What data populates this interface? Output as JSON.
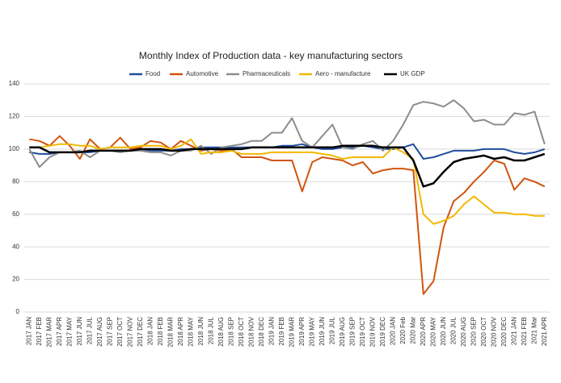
{
  "chart_data": {
    "type": "line",
    "title": "Monthly Index of Production data  - key manufacturing sectors",
    "categories": [
      "2017 JAN",
      "2017 FEB",
      "2017 MAR",
      "2017 APR",
      "2017 MAY",
      "2017 JUN",
      "2017 JUL",
      "2017 AUG",
      "2017 SEP",
      "2017 OCT",
      "2017 NOV",
      "2017 DEC",
      "2018 JAN",
      "2018 FEB",
      "2018 MAR",
      "2018 APR",
      "2018 MAY",
      "2018 JUN",
      "2018 JUL",
      "2018 AUG",
      "2018 SEP",
      "2018 OCT",
      "2018 NOV",
      "2018 DEC",
      "2019 JAN",
      "2019 FEB",
      "2019 MAR",
      "2019 APR",
      "2019 MAY",
      "2019 JUN",
      "2019 JUL",
      "2019 AUG",
      "2019 SEP",
      "2019 OCT",
      "2019 NOV",
      "2019 DEC",
      "2020 JAN",
      "2020 Feb",
      "2020 Mar",
      "2020 APR",
      "2020 MAY",
      "2020 JUN",
      "2020 JUL",
      "2020 AUG",
      "2020 SEP",
      "2020 OCT",
      "2020 NOV",
      "2020 DEC",
      "2021 JAN",
      "2021 FEB",
      "2021 Mar",
      "2021 APR"
    ],
    "series": [
      {
        "name": "Food",
        "color": "#1f4e9c",
        "values": [
          98,
          97,
          97,
          98,
          98,
          98,
          98,
          99,
          99,
          99,
          99,
          100,
          99,
          99,
          99,
          100,
          100,
          101,
          101,
          101,
          101,
          101,
          101,
          101,
          101,
          102,
          102,
          103,
          101,
          100,
          100,
          101,
          101,
          102,
          101,
          100,
          100,
          101,
          103,
          94,
          95,
          97,
          99,
          99,
          99,
          100,
          100,
          100,
          98,
          97,
          98,
          100
        ]
      },
      {
        "name": "Automotive",
        "color": "#d0540e",
        "values": [
          106,
          105,
          102,
          108,
          102,
          94,
          106,
          100,
          101,
          107,
          100,
          101,
          105,
          104,
          100,
          105,
          102,
          99,
          100,
          99,
          100,
          95,
          95,
          95,
          93,
          93,
          93,
          74,
          92,
          95,
          94,
          93,
          90,
          92,
          85,
          87,
          88,
          88,
          87,
          11,
          19,
          52,
          68,
          73,
          80,
          86,
          93,
          91,
          75,
          82,
          80,
          77
        ]
      },
      {
        "name": "Pharmaceuticals",
        "color": "#8c8c8c",
        "values": [
          100,
          89,
          95,
          98,
          98,
          99,
          95,
          99,
          99,
          98,
          99,
          99,
          98,
          98,
          96,
          99,
          99,
          102,
          97,
          101,
          102,
          103,
          105,
          105,
          110,
          110,
          119,
          105,
          101,
          108,
          115,
          101,
          100,
          103,
          105,
          99,
          105,
          115,
          127,
          129,
          128,
          126,
          130,
          125,
          117,
          118,
          115,
          115,
          122,
          121,
          123,
          103
        ]
      },
      {
        "name": "Aero - manufacture",
        "color": "#f2b800",
        "values": [
          101,
          101,
          102,
          103,
          103,
          102,
          102,
          100,
          101,
          101,
          101,
          102,
          102,
          102,
          100,
          102,
          106,
          97,
          98,
          98,
          99,
          97,
          97,
          97,
          98,
          98,
          98,
          98,
          98,
          97,
          96,
          94,
          95,
          95,
          95,
          95,
          101,
          98,
          94,
          60,
          54,
          56,
          59,
          66,
          71,
          66,
          61,
          61,
          60,
          60,
          59,
          59
        ]
      },
      {
        "name": "UK GDP",
        "color": "#000000",
        "values": [
          101,
          101,
          98,
          98,
          98,
          98,
          99,
          99,
          99,
          99,
          99,
          100,
          100,
          100,
          99,
          99,
          100,
          100,
          100,
          100,
          100,
          100,
          101,
          101,
          101,
          101,
          101,
          101,
          101,
          101,
          101,
          102,
          102,
          102,
          102,
          101,
          101,
          101,
          93,
          77,
          79,
          86,
          92,
          94,
          95,
          96,
          94,
          95,
          93,
          93,
          95,
          97
        ]
      }
    ],
    "ylim": [
      0,
      140
    ],
    "yticks": [
      0,
      20,
      40,
      60,
      80,
      100,
      120,
      140
    ],
    "grid": true,
    "legend": "top"
  }
}
